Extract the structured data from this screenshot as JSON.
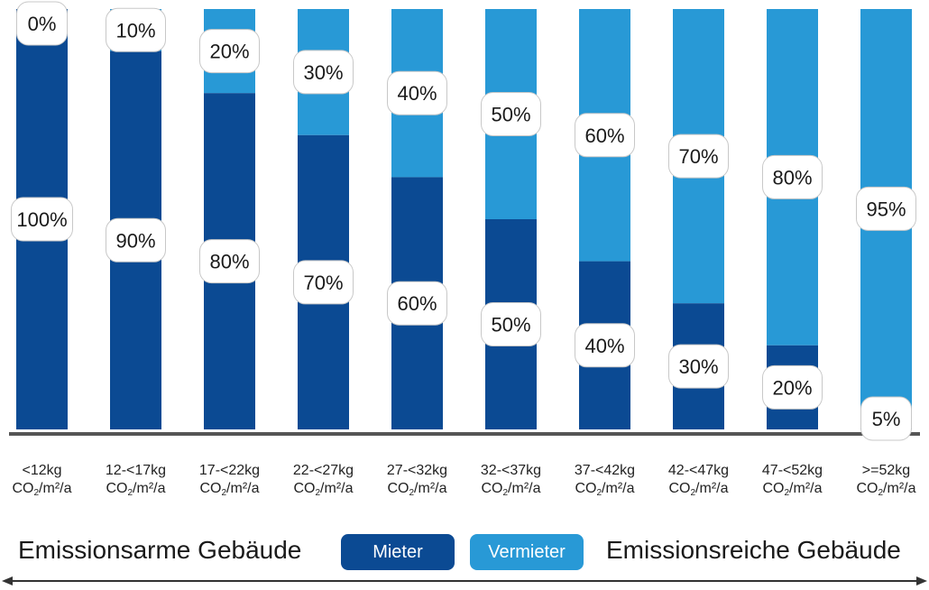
{
  "colors": {
    "mieter": "#0b4a93",
    "vermieter": "#2899d6",
    "axis": "#555555"
  },
  "chart_data": {
    "type": "bar",
    "stacked": true,
    "orientation": "vertical",
    "ylim": [
      0,
      100
    ],
    "categories": [
      {
        "top": "<12kg",
        "bottom_pre": "CO",
        "bottom_sub": "2",
        "bottom_post": "/m²/a"
      },
      {
        "top": "12-<17kg",
        "bottom_pre": "CO",
        "bottom_sub": "2",
        "bottom_post": "/m²/a"
      },
      {
        "top": "17-<22kg",
        "bottom_pre": "CO",
        "bottom_sub": "2",
        "bottom_post": "/m²/a"
      },
      {
        "top": "22-<27kg",
        "bottom_pre": "CO",
        "bottom_sub": "2",
        "bottom_post": "/m²/a"
      },
      {
        "top": "27-<32kg",
        "bottom_pre": "CO",
        "bottom_sub": "2",
        "bottom_post": "/m²/a"
      },
      {
        "top": "32-<37kg",
        "bottom_pre": "CO",
        "bottom_sub": "2",
        "bottom_post": "/m²/a"
      },
      {
        "top": "37-<42kg",
        "bottom_pre": "CO",
        "bottom_sub": "2",
        "bottom_post": "/m²/a"
      },
      {
        "top": "42-<47kg",
        "bottom_pre": "CO",
        "bottom_sub": "2",
        "bottom_post": "/m²/a"
      },
      {
        "top": "47-<52kg",
        "bottom_pre": "CO",
        "bottom_sub": "2",
        "bottom_post": "/m²/a"
      },
      {
        "top": ">=52kg",
        "bottom_pre": "CO",
        "bottom_sub": "2",
        "bottom_post": "/m²/a"
      }
    ],
    "series": [
      {
        "name": "Mieter",
        "values": [
          100,
          90,
          80,
          70,
          60,
          50,
          40,
          30,
          20,
          5
        ],
        "labels": [
          "100%",
          "90%",
          "80%",
          "70%",
          "60%",
          "50%",
          "40%",
          "30%",
          "20%",
          "5%"
        ]
      },
      {
        "name": "Vermieter",
        "values": [
          0,
          10,
          20,
          30,
          40,
          50,
          60,
          70,
          80,
          95
        ],
        "labels": [
          "0%",
          "10%",
          "20%",
          "30%",
          "40%",
          "50%",
          "60%",
          "70%",
          "80%",
          "95%"
        ]
      }
    ],
    "legend": {
      "position": "bottom-center"
    }
  },
  "footer": {
    "left_text": "Emissionsarme Gebäude",
    "right_text": "Emissionsreiche Gebäude",
    "legend_mieter": "Mieter",
    "legend_vermieter": "Vermieter"
  }
}
